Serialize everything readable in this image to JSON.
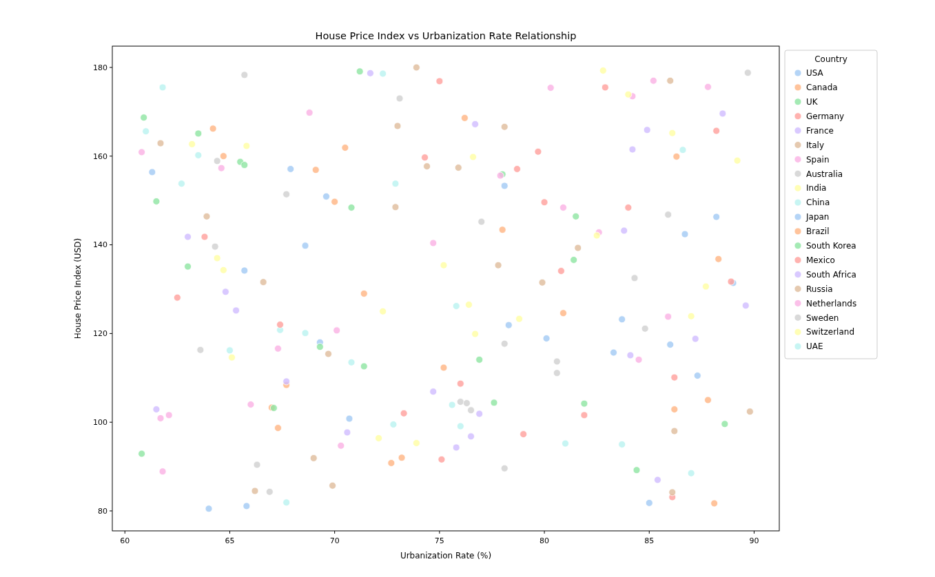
{
  "chart_data": {
    "type": "scatter",
    "title": "House Price Index vs Urbanization Rate Relationship",
    "xlabel": "Urbanization Rate (%)",
    "ylabel": "House Price Index (USD)",
    "legend_title": "Country",
    "legend": "right",
    "marker": "circle",
    "xlim": [
      59.4,
      91.2
    ],
    "ylim": [
      75.5,
      184.8
    ],
    "xticks": [
      60,
      65,
      70,
      75,
      80,
      85,
      90
    ],
    "yticks": [
      80,
      100,
      120,
      140,
      160,
      180
    ],
    "series": [
      {
        "name": "USA",
        "color": "#a1c9f4",
        "x": [
          61.3,
          67.9,
          69.6,
          68.6,
          65.7,
          78.1,
          88.2,
          86.7,
          89.0,
          69.3
        ],
        "values": [
          156.4,
          157.1,
          150.9,
          139.8,
          134.2,
          153.3,
          146.3,
          142.4,
          131.4,
          118.0
        ]
      },
      {
        "name": "Canada",
        "color": "#ffb482",
        "x": [
          64.2,
          64.7,
          69.1,
          70.0,
          76.2,
          70.5,
          78.0,
          86.3,
          88.3,
          67.7
        ],
        "values": [
          166.2,
          160.0,
          156.9,
          149.7,
          168.6,
          161.9,
          143.4,
          159.9,
          136.8,
          108.4
        ]
      },
      {
        "name": "UK",
        "color": "#8de5a1",
        "x": [
          60.9,
          63.5,
          65.5,
          65.7,
          61.5,
          63.0,
          71.2,
          78.0,
          70.8,
          81.5
        ],
        "values": [
          168.7,
          165.1,
          158.7,
          158.0,
          149.8,
          135.1,
          179.1,
          155.9,
          148.4,
          146.4
        ]
      },
      {
        "name": "Germany",
        "color": "#ff9f9b",
        "x": [
          63.8,
          75.0,
          74.3,
          79.7,
          78.7,
          80.0,
          82.9,
          88.2,
          84.0,
          80.8
        ],
        "values": [
          141.8,
          176.9,
          159.7,
          161.0,
          157.1,
          149.6,
          175.5,
          165.7,
          148.4,
          134.1
        ]
      },
      {
        "name": "France",
        "color": "#d0bbff",
        "x": [
          63.0,
          71.7,
          76.7,
          88.5,
          84.9,
          84.2,
          83.8,
          64.8,
          65.3,
          67.7
        ],
        "values": [
          141.8,
          178.7,
          167.2,
          169.6,
          165.9,
          161.5,
          143.2,
          129.4,
          125.2,
          109.2
        ]
      },
      {
        "name": "Italy",
        "color": "#debb9b",
        "x": [
          61.7,
          63.9,
          66.6,
          73.9,
          78.1,
          73.0,
          74.4,
          75.9,
          72.9,
          77.8
        ],
        "values": [
          162.9,
          146.4,
          131.6,
          180.0,
          166.6,
          166.8,
          157.7,
          157.4,
          148.5,
          135.4
        ]
      },
      {
        "name": "Spain",
        "color": "#fab0e4",
        "x": [
          60.8,
          64.6,
          68.8,
          80.3,
          77.9,
          74.7,
          85.2,
          87.8,
          84.2,
          80.9
        ],
        "values": [
          160.9,
          157.3,
          169.8,
          175.4,
          155.6,
          140.4,
          177.0,
          175.6,
          173.5,
          148.4
        ]
      },
      {
        "name": "Australia",
        "color": "#cfcfcf",
        "x": [
          65.7,
          64.4,
          67.7,
          64.3,
          73.1,
          77.0,
          89.7,
          85.9,
          84.3,
          63.6
        ],
        "values": [
          178.3,
          158.9,
          151.4,
          139.6,
          173.0,
          145.2,
          178.8,
          146.8,
          132.5,
          116.3
        ]
      },
      {
        "name": "India",
        "color": "#fffea3",
        "x": [
          63.2,
          65.8,
          64.4,
          64.7,
          76.6,
          75.2,
          82.8,
          84.0,
          86.1,
          89.2
        ],
        "values": [
          162.7,
          162.3,
          137.0,
          134.3,
          159.8,
          135.4,
          179.3,
          173.9,
          165.2,
          159.0
        ]
      },
      {
        "name": "China",
        "color": "#b9f2f0",
        "x": [
          61.8,
          61.0,
          63.5,
          62.7,
          72.3,
          72.9,
          86.6,
          67.4,
          68.6,
          65.0
        ],
        "values": [
          175.5,
          165.6,
          160.2,
          153.8,
          178.6,
          153.8,
          161.4,
          120.8,
          120.1,
          116.2
        ]
      },
      {
        "name": "Japan",
        "color": "#a1c9f4",
        "x": [
          64.0,
          65.8,
          78.3,
          80.1,
          70.7,
          83.7,
          86.0,
          83.3,
          87.3,
          85.0
        ],
        "values": [
          80.5,
          81.1,
          121.9,
          118.9,
          100.8,
          123.2,
          117.5,
          115.7,
          110.5,
          81.8
        ]
      },
      {
        "name": "Brazil",
        "color": "#ffb482",
        "x": [
          67.0,
          67.3,
          71.4,
          75.2,
          72.7,
          73.2,
          80.9,
          87.8,
          86.2,
          88.1
        ],
        "values": [
          103.3,
          98.7,
          129.0,
          112.3,
          90.8,
          92.0,
          124.6,
          105.0,
          102.9,
          81.7
        ]
      },
      {
        "name": "South Korea",
        "color": "#8de5a1",
        "x": [
          81.4,
          69.3,
          67.1,
          60.8,
          71.4,
          76.9,
          77.6,
          81.9,
          88.6,
          84.4
        ],
        "values": [
          136.6,
          117.0,
          103.2,
          92.9,
          112.6,
          114.1,
          104.4,
          104.2,
          99.6,
          89.2
        ]
      },
      {
        "name": "Mexico",
        "color": "#ff9f9b",
        "x": [
          88.9,
          62.5,
          67.4,
          76.0,
          73.3,
          79.0,
          75.1,
          86.2,
          81.9,
          86.1
        ],
        "values": [
          131.7,
          128.1,
          122.0,
          108.7,
          102.0,
          97.3,
          91.6,
          110.1,
          101.6,
          83.1
        ]
      },
      {
        "name": "South Africa",
        "color": "#d0bbff",
        "x": [
          61.5,
          74.7,
          76.9,
          70.6,
          76.5,
          75.8,
          89.6,
          87.2,
          84.1,
          85.4
        ],
        "values": [
          102.9,
          106.9,
          101.9,
          97.7,
          96.8,
          94.3,
          126.3,
          118.8,
          115.1,
          87.0
        ]
      },
      {
        "name": "Russia",
        "color": "#debb9b",
        "x": [
          79.9,
          86.0,
          81.6,
          69.7,
          69.0,
          69.9,
          66.2,
          89.8,
          86.2,
          86.1
        ],
        "values": [
          131.5,
          177.0,
          139.3,
          115.4,
          91.9,
          85.7,
          84.5,
          102.4,
          98.0,
          84.2
        ]
      },
      {
        "name": "Netherlands",
        "color": "#fab0e4",
        "x": [
          82.6,
          70.1,
          67.3,
          66.0,
          61.7,
          62.1,
          61.8,
          70.3,
          85.9,
          84.5
        ],
        "values": [
          142.8,
          120.7,
          116.6,
          104.0,
          100.9,
          101.6,
          88.9,
          94.7,
          123.8,
          114.1
        ]
      },
      {
        "name": "Sweden",
        "color": "#cfcfcf",
        "x": [
          66.3,
          66.9,
          78.1,
          80.6,
          80.6,
          76.0,
          76.3,
          76.5,
          78.1,
          84.8
        ],
        "values": [
          90.4,
          84.3,
          117.7,
          113.7,
          111.1,
          104.6,
          104.3,
          102.7,
          89.6,
          121.1
        ]
      },
      {
        "name": "Switzerland",
        "color": "#fffea3",
        "x": [
          82.5,
          87.7,
          65.1,
          72.3,
          76.4,
          78.8,
          76.7,
          72.1,
          73.9,
          87.0
        ],
        "values": [
          142.1,
          130.6,
          114.6,
          125.0,
          126.5,
          123.3,
          119.9,
          96.4,
          95.3,
          123.9
        ]
      },
      {
        "name": "UAE",
        "color": "#b9f2f0",
        "x": [
          67.7,
          75.8,
          70.8,
          75.6,
          72.8,
          76.0,
          81.0,
          83.7,
          87.0
        ],
        "values": [
          81.9,
          126.2,
          113.5,
          103.9,
          99.5,
          99.1,
          95.2,
          95.0,
          88.5
        ]
      }
    ]
  }
}
